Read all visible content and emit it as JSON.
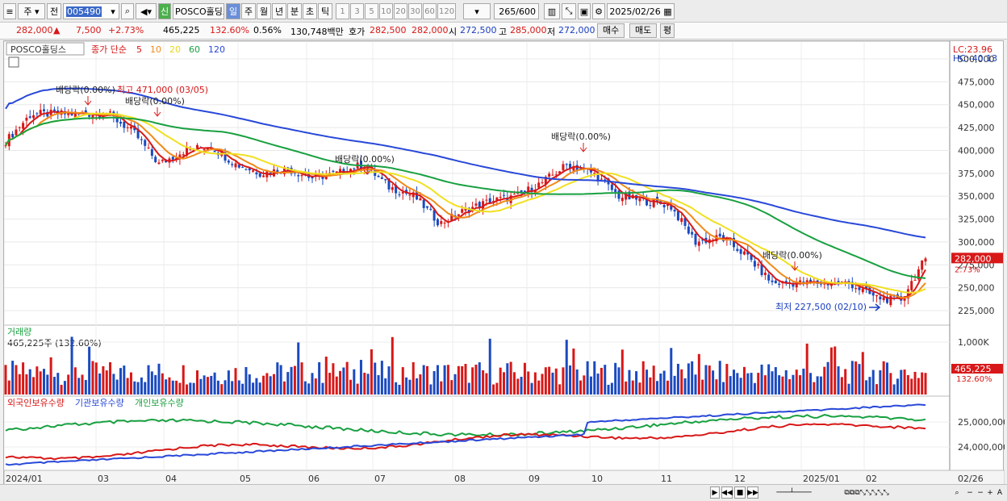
{
  "toolbar": {
    "menu_btn": "≡",
    "market": "주",
    "prev": "전",
    "code": "005490",
    "search_icon": "search-icon",
    "speaker_icon": "speaker-icon",
    "new_badge": "신",
    "name": "POSCO홀딩스",
    "periods": [
      "일",
      "주",
      "월",
      "년",
      "분",
      "초",
      "틱"
    ],
    "active_period": "일",
    "intervals": [
      "1",
      "3",
      "5",
      "10",
      "20",
      "30",
      "60",
      "120"
    ],
    "count": "265",
    "count_max": "/600",
    "date": "2025/02/26"
  },
  "quote": {
    "price": "282,000",
    "arrow": "▲",
    "change": "7,500",
    "change_pct": "+2.73%",
    "volume": "465,225",
    "vol_ratio": "132.60%",
    "turnover": "0.56%",
    "amount": "130,748백만",
    "ask_label": "호가",
    "ask": "282,500",
    "bid": "282,000",
    "open_label": "시",
    "open": "272,500",
    "high_label": "고",
    "high": "285,000",
    "low_label": "저",
    "low": "272,000",
    "buy_btn": "매수",
    "sell_btn": "매도",
    "eval_btn": "평"
  },
  "price_panel": {
    "tag": "POSCO홀딩스",
    "legend_prefix": "종가 단순",
    "ma": [
      {
        "label": "5",
        "color": "#d81818"
      },
      {
        "label": "10",
        "color": "#f08a18"
      },
      {
        "label": "20",
        "color": "#e8d818"
      },
      {
        "label": "60",
        "color": "#18a040"
      },
      {
        "label": "120",
        "color": "#2848d8"
      }
    ],
    "lc": "LC:23.96",
    "hc": "HC:-40.13",
    "yticks": [
      "500,000",
      "475,000",
      "450,000",
      "425,000",
      "400,000",
      "375,000",
      "350,000",
      "325,000",
      "300,000",
      "275,000",
      "250,000",
      "225,000"
    ],
    "cur_price": "282,000",
    "cur_pct": "2.73%",
    "ann_high": "최고 471,000 (03/05)",
    "ann_low": "최저 227,500 (02/10)",
    "dividends": [
      "배당락(0.00%)",
      "배당락(0.00%)",
      "배당락(0.00%)",
      "배당락(0.00%)",
      "배당락(0.00%)"
    ]
  },
  "volume_panel": {
    "title": "거래량",
    "info": "465,225주 (132.60%)",
    "ytick": "1,000K",
    "cur": "465,225",
    "cur_pct": "132.60%"
  },
  "holding_panel": {
    "legend": [
      {
        "label": "외국인보유수량",
        "color": "#d81818"
      },
      {
        "label": "기관보유수량",
        "color": "#2848d8"
      },
      {
        "label": "개인보유수량",
        "color": "#18a040"
      }
    ],
    "yticks": [
      "25,000,000",
      "24,000,000"
    ]
  },
  "xaxis": {
    "labels": [
      "2024/01",
      "03",
      "04",
      "05",
      "06",
      "07",
      "08",
      "09",
      "10",
      "11",
      "12",
      "2025/01",
      "02"
    ],
    "last": "02/26"
  },
  "chart_data": {
    "type": "candlestick",
    "period": "daily",
    "x_range": [
      "2024/01",
      "02/26"
    ],
    "y_range": [
      225000,
      500000
    ],
    "annotations": {
      "high": 471000,
      "high_date": "03/05",
      "low": 227500,
      "low_date": "02/10"
    },
    "approx_close_path": [
      410000,
      440000,
      440000,
      440000,
      440000,
      420000,
      385000,
      400000,
      405000,
      385000,
      375000,
      380000,
      370000,
      375000,
      385000,
      360000,
      350000,
      320000,
      335000,
      345000,
      350000,
      365000,
      385000,
      375000,
      350000,
      345000,
      340000,
      300000,
      305000,
      285000,
      255000,
      255000,
      255000,
      255000,
      240000,
      235000,
      282000
    ],
    "last_close": 282000
  }
}
